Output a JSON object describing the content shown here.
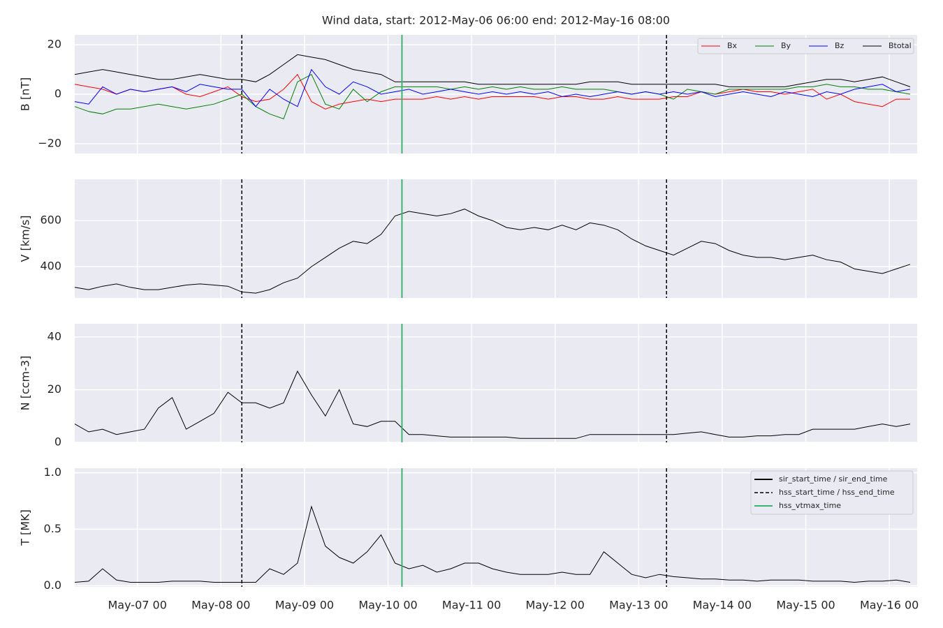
{
  "chart_data": [
    {
      "type": "line",
      "title": "Wind data, start: 2012-May-06 06:00  end: 2012-May-16 08:00",
      "ylabel": "B [nT]",
      "xlim": [
        "2012-05-06 06:00",
        "2012-05-16 08:00"
      ],
      "ylim": [
        -24,
        24
      ],
      "yticks": [
        {
          "value": -20,
          "label": "−20"
        },
        0,
        20
      ],
      "grid": true,
      "legend": "upper right",
      "legend_columns": 4,
      "x": [
        "2012-05-06 06:00",
        "2012-05-06 10:00",
        "2012-05-06 14:00",
        "2012-05-06 18:00",
        "2012-05-06 22:00",
        "2012-05-07 02:00",
        "2012-05-07 06:00",
        "2012-05-07 10:00",
        "2012-05-07 14:00",
        "2012-05-07 18:00",
        "2012-05-07 22:00",
        "2012-05-08 02:00",
        "2012-05-08 06:00",
        "2012-05-08 10:00",
        "2012-05-08 14:00",
        "2012-05-08 18:00",
        "2012-05-08 22:00",
        "2012-05-09 02:00",
        "2012-05-09 06:00",
        "2012-05-09 10:00",
        "2012-05-09 14:00",
        "2012-05-09 18:00",
        "2012-05-09 22:00",
        "2012-05-10 02:00",
        "2012-05-10 06:00",
        "2012-05-10 10:00",
        "2012-05-10 14:00",
        "2012-05-10 18:00",
        "2012-05-10 22:00",
        "2012-05-11 02:00",
        "2012-05-11 06:00",
        "2012-05-11 10:00",
        "2012-05-11 14:00",
        "2012-05-11 18:00",
        "2012-05-11 22:00",
        "2012-05-12 02:00",
        "2012-05-12 06:00",
        "2012-05-12 10:00",
        "2012-05-12 14:00",
        "2012-05-12 18:00",
        "2012-05-12 22:00",
        "2012-05-13 02:00",
        "2012-05-13 06:00",
        "2012-05-13 10:00",
        "2012-05-13 14:00",
        "2012-05-13 18:00",
        "2012-05-13 22:00",
        "2012-05-14 02:00",
        "2012-05-14 06:00",
        "2012-05-14 10:00",
        "2012-05-14 14:00",
        "2012-05-14 18:00",
        "2012-05-14 22:00",
        "2012-05-15 02:00",
        "2012-05-15 06:00",
        "2012-05-15 10:00",
        "2012-05-15 14:00",
        "2012-05-15 18:00",
        "2012-05-15 22:00",
        "2012-05-16 02:00",
        "2012-05-16 06:00"
      ],
      "series": [
        {
          "name": "Bx",
          "color": "#ff0000",
          "values": [
            4,
            3,
            2,
            0,
            2,
            1,
            2,
            3,
            0,
            -1,
            1,
            3,
            -1,
            -3,
            -2,
            2,
            8,
            -3,
            -6,
            -4,
            -3,
            -2,
            -3,
            -2,
            -2,
            -2,
            -1,
            -2,
            -1,
            -2,
            -1,
            -1,
            -1,
            -1,
            -2,
            -1,
            -1,
            -2,
            -2,
            -1,
            -2,
            -2,
            -2,
            -1,
            -1,
            1,
            0,
            1,
            2,
            1,
            1,
            0,
            1,
            2,
            -2,
            0,
            -3,
            -4,
            -5,
            -2,
            -2
          ]
        },
        {
          "name": "By",
          "color": "#008000",
          "values": [
            -5,
            -7,
            -8,
            -6,
            -6,
            -5,
            -4,
            -5,
            -6,
            -5,
            -4,
            -2,
            0,
            -5,
            -8,
            -10,
            5,
            8,
            -4,
            -6,
            2,
            -3,
            1,
            3,
            3,
            3,
            3,
            2,
            3,
            2,
            3,
            2,
            3,
            2,
            2,
            3,
            2,
            2,
            2,
            1,
            0,
            1,
            0,
            -2,
            2,
            1,
            0,
            2,
            2,
            2,
            2,
            2,
            3,
            3,
            4,
            3,
            3,
            2,
            2,
            1,
            0
          ]
        },
        {
          "name": "Bz",
          "color": "#0000ff",
          "values": [
            -3,
            -4,
            3,
            0,
            2,
            1,
            2,
            3,
            1,
            4,
            3,
            2,
            2,
            -5,
            2,
            -2,
            -5,
            10,
            3,
            0,
            5,
            3,
            0,
            1,
            2,
            0,
            1,
            2,
            1,
            0,
            1,
            0,
            1,
            0,
            1,
            -1,
            0,
            -1,
            0,
            1,
            0,
            1,
            0,
            1,
            0,
            1,
            -1,
            0,
            1,
            0,
            -1,
            1,
            0,
            -1,
            1,
            0,
            2,
            3,
            4,
            1,
            2
          ]
        },
        {
          "name": "Btotal",
          "color": "#000000",
          "values": [
            8,
            9,
            10,
            9,
            8,
            7,
            6,
            6,
            7,
            8,
            7,
            6,
            6,
            5,
            8,
            12,
            16,
            15,
            14,
            12,
            10,
            9,
            8,
            5,
            5,
            5,
            5,
            5,
            5,
            4,
            4,
            4,
            4,
            4,
            4,
            4,
            4,
            5,
            5,
            5,
            4,
            4,
            4,
            4,
            4,
            4,
            4,
            3,
            3,
            3,
            3,
            3,
            4,
            5,
            6,
            6,
            5,
            6,
            7,
            5,
            3
          ]
        }
      ]
    },
    {
      "type": "line",
      "ylabel": "V [km/s]",
      "xlim": [
        "2012-05-06 06:00",
        "2012-05-16 08:00"
      ],
      "ylim": [
        264,
        779
      ],
      "yticks": [
        400,
        600
      ],
      "grid": true,
      "x": [
        "2012-05-06 06:00",
        "2012-05-06 10:00",
        "2012-05-06 14:00",
        "2012-05-06 18:00",
        "2012-05-06 22:00",
        "2012-05-07 02:00",
        "2012-05-07 06:00",
        "2012-05-07 10:00",
        "2012-05-07 14:00",
        "2012-05-07 18:00",
        "2012-05-07 22:00",
        "2012-05-08 02:00",
        "2012-05-08 06:00",
        "2012-05-08 10:00",
        "2012-05-08 14:00",
        "2012-05-08 18:00",
        "2012-05-08 22:00",
        "2012-05-09 02:00",
        "2012-05-09 06:00",
        "2012-05-09 10:00",
        "2012-05-09 14:00",
        "2012-05-09 18:00",
        "2012-05-09 22:00",
        "2012-05-10 02:00",
        "2012-05-10 06:00",
        "2012-05-10 10:00",
        "2012-05-10 14:00",
        "2012-05-10 18:00",
        "2012-05-10 22:00",
        "2012-05-11 02:00",
        "2012-05-11 06:00",
        "2012-05-11 10:00",
        "2012-05-11 14:00",
        "2012-05-11 18:00",
        "2012-05-11 22:00",
        "2012-05-12 02:00",
        "2012-05-12 06:00",
        "2012-05-12 10:00",
        "2012-05-12 14:00",
        "2012-05-12 18:00",
        "2012-05-12 22:00",
        "2012-05-13 02:00",
        "2012-05-13 06:00",
        "2012-05-13 10:00",
        "2012-05-13 14:00",
        "2012-05-13 18:00",
        "2012-05-13 22:00",
        "2012-05-14 02:00",
        "2012-05-14 06:00",
        "2012-05-14 10:00",
        "2012-05-14 14:00",
        "2012-05-14 18:00",
        "2012-05-14 22:00",
        "2012-05-15 02:00",
        "2012-05-15 06:00",
        "2012-05-15 10:00",
        "2012-05-15 14:00",
        "2012-05-15 18:00",
        "2012-05-15 22:00",
        "2012-05-16 02:00",
        "2012-05-16 06:00"
      ],
      "series": [
        {
          "color": "#000000",
          "values": [
            310,
            300,
            315,
            325,
            310,
            300,
            300,
            310,
            320,
            325,
            320,
            315,
            290,
            285,
            300,
            330,
            350,
            400,
            440,
            480,
            510,
            500,
            540,
            620,
            640,
            630,
            620,
            630,
            650,
            620,
            600,
            570,
            560,
            570,
            560,
            580,
            560,
            590,
            580,
            560,
            520,
            490,
            470,
            450,
            480,
            510,
            500,
            470,
            450,
            440,
            440,
            430,
            440,
            450,
            430,
            420,
            390,
            380,
            370,
            390,
            410
          ]
        }
      ]
    },
    {
      "type": "line",
      "ylabel": "N [ccm-3]",
      "xlim": [
        "2012-05-06 06:00",
        "2012-05-16 08:00"
      ],
      "ylim": [
        0,
        45
      ],
      "yticks": [
        0,
        20,
        40
      ],
      "grid": true,
      "x": [
        "2012-05-06 06:00",
        "2012-05-06 10:00",
        "2012-05-06 14:00",
        "2012-05-06 18:00",
        "2012-05-06 22:00",
        "2012-05-07 02:00",
        "2012-05-07 06:00",
        "2012-05-07 10:00",
        "2012-05-07 14:00",
        "2012-05-07 18:00",
        "2012-05-07 22:00",
        "2012-05-08 02:00",
        "2012-05-08 06:00",
        "2012-05-08 10:00",
        "2012-05-08 14:00",
        "2012-05-08 18:00",
        "2012-05-08 22:00",
        "2012-05-09 02:00",
        "2012-05-09 06:00",
        "2012-05-09 10:00",
        "2012-05-09 14:00",
        "2012-05-09 18:00",
        "2012-05-09 22:00",
        "2012-05-10 02:00",
        "2012-05-10 06:00",
        "2012-05-10 10:00",
        "2012-05-10 14:00",
        "2012-05-10 18:00",
        "2012-05-10 22:00",
        "2012-05-11 02:00",
        "2012-05-11 06:00",
        "2012-05-11 10:00",
        "2012-05-11 14:00",
        "2012-05-11 18:00",
        "2012-05-11 22:00",
        "2012-05-12 02:00",
        "2012-05-12 06:00",
        "2012-05-12 10:00",
        "2012-05-12 14:00",
        "2012-05-12 18:00",
        "2012-05-12 22:00",
        "2012-05-13 02:00",
        "2012-05-13 06:00",
        "2012-05-13 10:00",
        "2012-05-13 14:00",
        "2012-05-13 18:00",
        "2012-05-13 22:00",
        "2012-05-14 02:00",
        "2012-05-14 06:00",
        "2012-05-14 10:00",
        "2012-05-14 14:00",
        "2012-05-14 18:00",
        "2012-05-14 22:00",
        "2012-05-15 02:00",
        "2012-05-15 06:00",
        "2012-05-15 10:00",
        "2012-05-15 14:00",
        "2012-05-15 18:00",
        "2012-05-15 22:00",
        "2012-05-16 02:00",
        "2012-05-16 06:00"
      ],
      "series": [
        {
          "color": "#000000",
          "values": [
            7,
            4,
            5,
            3,
            4,
            5,
            13,
            17,
            5,
            8,
            11,
            19,
            15,
            15,
            13,
            15,
            27,
            18,
            10,
            20,
            7,
            6,
            8,
            8,
            3,
            3,
            2.5,
            2,
            2,
            2,
            2,
            2,
            1.5,
            1.5,
            1.5,
            1.5,
            1.5,
            3,
            3,
            3,
            3,
            3,
            3,
            3,
            3.5,
            4,
            3,
            2,
            2,
            2.5,
            2.5,
            3,
            3,
            5,
            5,
            5,
            5,
            6,
            7,
            6,
            7
          ]
        }
      ]
    },
    {
      "type": "line",
      "ylabel": "T [MK]",
      "xlim": [
        "2012-05-06 06:00",
        "2012-05-16 08:00"
      ],
      "ylim": [
        -0.01,
        1.04
      ],
      "yticks": [
        {
          "value": 0,
          "label": "0.0"
        },
        {
          "value": 0.5,
          "label": "0.5"
        },
        {
          "value": 1,
          "label": "1.0"
        }
      ],
      "grid": true,
      "legend": "upper right",
      "xticks": [
        {
          "value": "2012-05-07 00:00",
          "label": "May-07 00"
        },
        {
          "value": "2012-05-08 00:00",
          "label": "May-08 00"
        },
        {
          "value": "2012-05-09 00:00",
          "label": "May-09 00"
        },
        {
          "value": "2012-05-10 00:00",
          "label": "May-10 00"
        },
        {
          "value": "2012-05-11 00:00",
          "label": "May-11 00"
        },
        {
          "value": "2012-05-12 00:00",
          "label": "May-12 00"
        },
        {
          "value": "2012-05-13 00:00",
          "label": "May-13 00"
        },
        {
          "value": "2012-05-14 00:00",
          "label": "May-14 00"
        },
        {
          "value": "2012-05-15 00:00",
          "label": "May-15 00"
        },
        {
          "value": "2012-05-16 00:00",
          "label": "May-16 00"
        }
      ],
      "markers": [
        {
          "name": "sir_start_time / sir_end_time",
          "color": "#000000",
          "style": "solid",
          "x": []
        },
        {
          "name": "hss_start_time / hss_end_time",
          "color": "#000000",
          "style": "dashed",
          "x": [
            "2012-05-08 06:00",
            "2012-05-13 08:00"
          ]
        },
        {
          "name": "hss_vtmax_time",
          "color": "#3cb371",
          "style": "solid",
          "x": [
            "2012-05-10 04:00"
          ]
        }
      ],
      "x": [
        "2012-05-06 06:00",
        "2012-05-06 10:00",
        "2012-05-06 14:00",
        "2012-05-06 18:00",
        "2012-05-06 22:00",
        "2012-05-07 02:00",
        "2012-05-07 06:00",
        "2012-05-07 10:00",
        "2012-05-07 14:00",
        "2012-05-07 18:00",
        "2012-05-07 22:00",
        "2012-05-08 02:00",
        "2012-05-08 06:00",
        "2012-05-08 10:00",
        "2012-05-08 14:00",
        "2012-05-08 18:00",
        "2012-05-08 22:00",
        "2012-05-09 02:00",
        "2012-05-09 06:00",
        "2012-05-09 10:00",
        "2012-05-09 14:00",
        "2012-05-09 18:00",
        "2012-05-09 22:00",
        "2012-05-10 02:00",
        "2012-05-10 06:00",
        "2012-05-10 10:00",
        "2012-05-10 14:00",
        "2012-05-10 18:00",
        "2012-05-10 22:00",
        "2012-05-11 02:00",
        "2012-05-11 06:00",
        "2012-05-11 10:00",
        "2012-05-11 14:00",
        "2012-05-11 18:00",
        "2012-05-11 22:00",
        "2012-05-12 02:00",
        "2012-05-12 06:00",
        "2012-05-12 10:00",
        "2012-05-12 14:00",
        "2012-05-12 18:00",
        "2012-05-12 22:00",
        "2012-05-13 02:00",
        "2012-05-13 06:00",
        "2012-05-13 10:00",
        "2012-05-13 14:00",
        "2012-05-13 18:00",
        "2012-05-13 22:00",
        "2012-05-14 02:00",
        "2012-05-14 06:00",
        "2012-05-14 10:00",
        "2012-05-14 14:00",
        "2012-05-14 18:00",
        "2012-05-14 22:00",
        "2012-05-15 02:00",
        "2012-05-15 06:00",
        "2012-05-15 10:00",
        "2012-05-15 14:00",
        "2012-05-15 18:00",
        "2012-05-15 22:00",
        "2012-05-16 02:00",
        "2012-05-16 06:00"
      ],
      "series": [
        {
          "color": "#000000",
          "values": [
            0.03,
            0.04,
            0.15,
            0.05,
            0.03,
            0.03,
            0.03,
            0.04,
            0.04,
            0.04,
            0.03,
            0.03,
            0.03,
            0.03,
            0.15,
            0.1,
            0.2,
            0.7,
            0.35,
            0.25,
            0.2,
            0.3,
            0.45,
            0.2,
            0.15,
            0.18,
            0.12,
            0.15,
            0.2,
            0.2,
            0.15,
            0.12,
            0.1,
            0.1,
            0.1,
            0.12,
            0.1,
            0.1,
            0.3,
            0.2,
            0.1,
            0.07,
            0.1,
            0.08,
            0.07,
            0.06,
            0.06,
            0.05,
            0.05,
            0.04,
            0.05,
            0.05,
            0.05,
            0.04,
            0.04,
            0.04,
            0.03,
            0.04,
            0.04,
            0.05,
            0.03
          ]
        }
      ]
    }
  ]
}
